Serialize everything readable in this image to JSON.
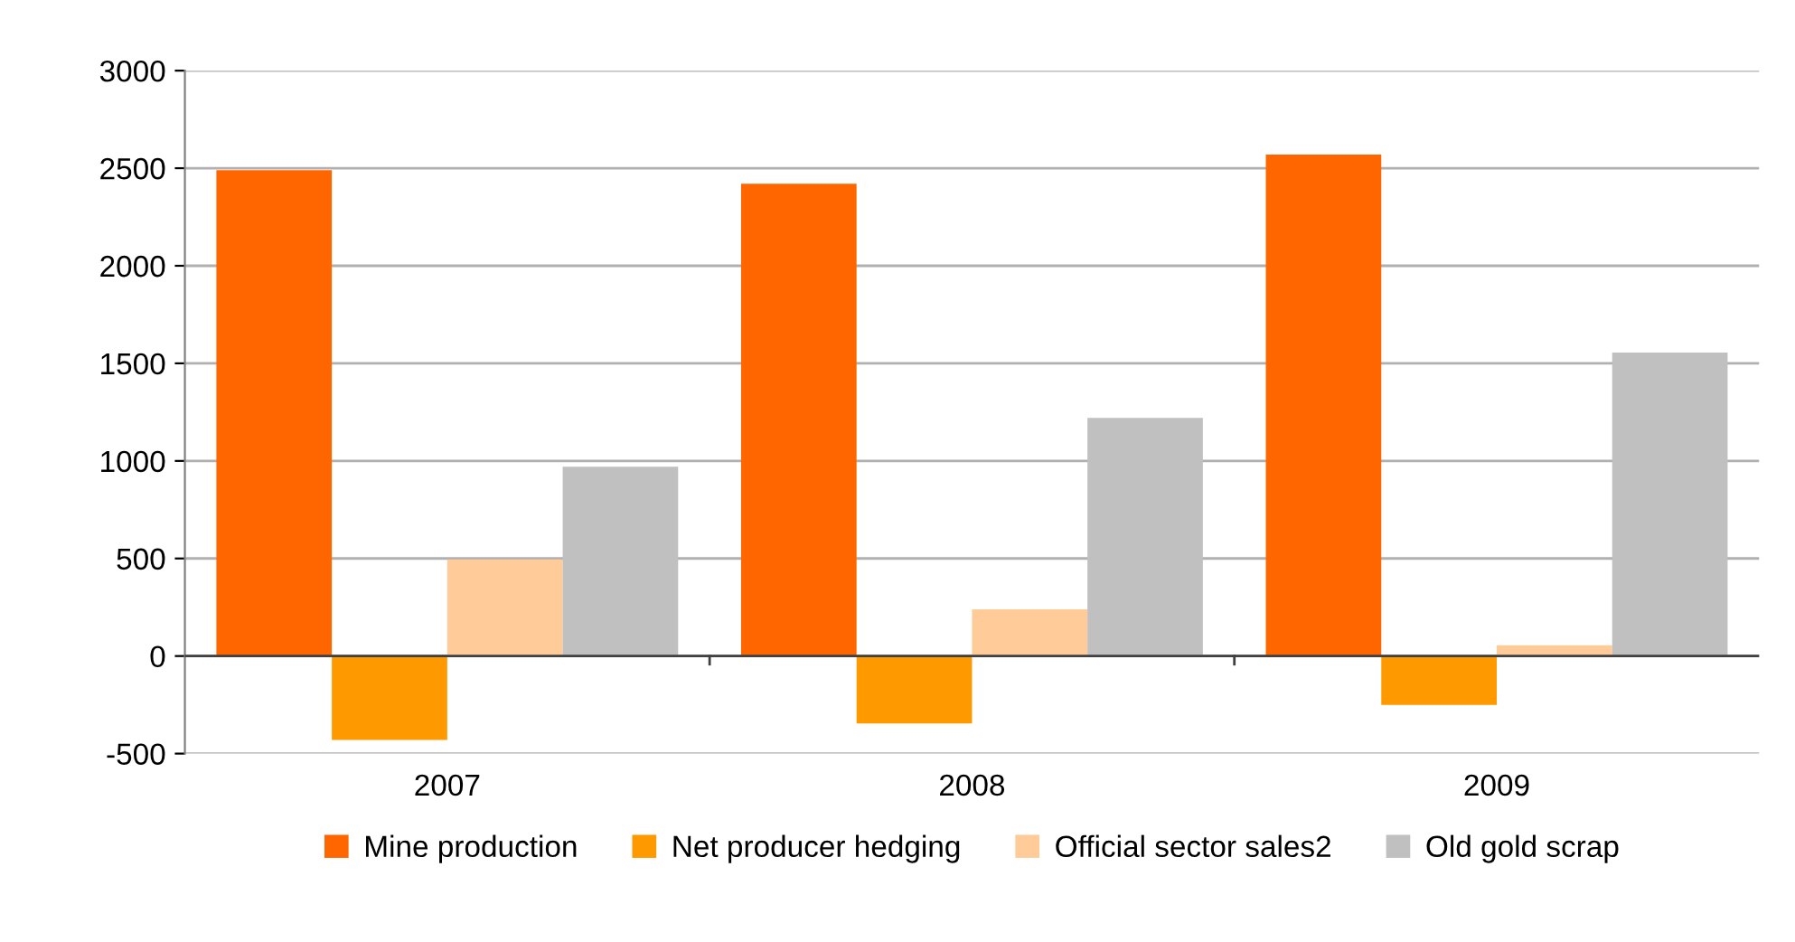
{
  "chart_data": {
    "type": "bar",
    "categories": [
      "2007",
      "2008",
      "2009"
    ],
    "series": [
      {
        "name": "Mine production",
        "color": "#ff6600",
        "values": [
          2490,
          2420,
          2570
        ]
      },
      {
        "name": "Net producer hedging",
        "color": "#ff9900",
        "values": [
          -430,
          -345,
          -250
        ]
      },
      {
        "name": "Official sector sales2",
        "color": "#ffcc99",
        "values": [
          495,
          240,
          55
        ]
      },
      {
        "name": "Old gold scrap",
        "color": "#c0c0c0",
        "values": [
          970,
          1220,
          1555
        ]
      }
    ],
    "ylim": [
      -500,
      3000
    ],
    "yticks": [
      -500,
      0,
      500,
      1000,
      1500,
      2000,
      2500,
      3000
    ],
    "grid": "y",
    "legend": "bottom"
  }
}
